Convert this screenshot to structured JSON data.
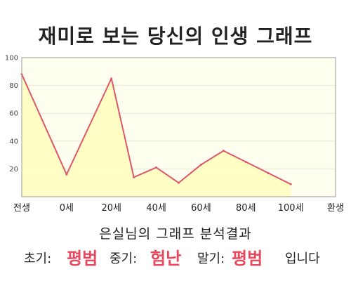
{
  "title": "재미로 보는 당신의 인생 그래프",
  "chart_data": {
    "type": "area",
    "x": [
      0,
      10,
      20,
      25,
      30,
      35,
      40,
      45,
      50,
      55,
      60
    ],
    "x_ticks": [
      {
        "x": 0,
        "label": "전생"
      },
      {
        "x": 10,
        "label": "0세"
      },
      {
        "x": 20,
        "label": "20세"
      },
      {
        "x": 30,
        "label": "40세"
      },
      {
        "x": 40,
        "label": "60세"
      },
      {
        "x": 50,
        "label": "80세"
      },
      {
        "x": 60,
        "label": "100세"
      },
      {
        "x": 70,
        "label": "환생"
      }
    ],
    "series": [
      {
        "values": [
          88,
          16,
          85,
          14,
          21,
          10,
          23,
          33,
          25,
          17,
          9
        ]
      }
    ],
    "xlim": [
      0,
      70
    ],
    "ylim": [
      0,
      100
    ],
    "y_ticks": [
      20,
      40,
      60,
      80,
      100
    ],
    "grid": true,
    "colors": {
      "line": "#e0566a",
      "fill": "#ffffc0",
      "plot_bg": "#fffff0",
      "grid": "#e6e6d8",
      "axis": "#999999"
    }
  },
  "result": {
    "heading": "은실님의 그래프 분석결과",
    "early_label": "초기:",
    "early_value": "평범",
    "mid_label": "중기:",
    "mid_value": "험난",
    "late_label": "말기:",
    "late_value": "평범",
    "ending": "입니다"
  }
}
